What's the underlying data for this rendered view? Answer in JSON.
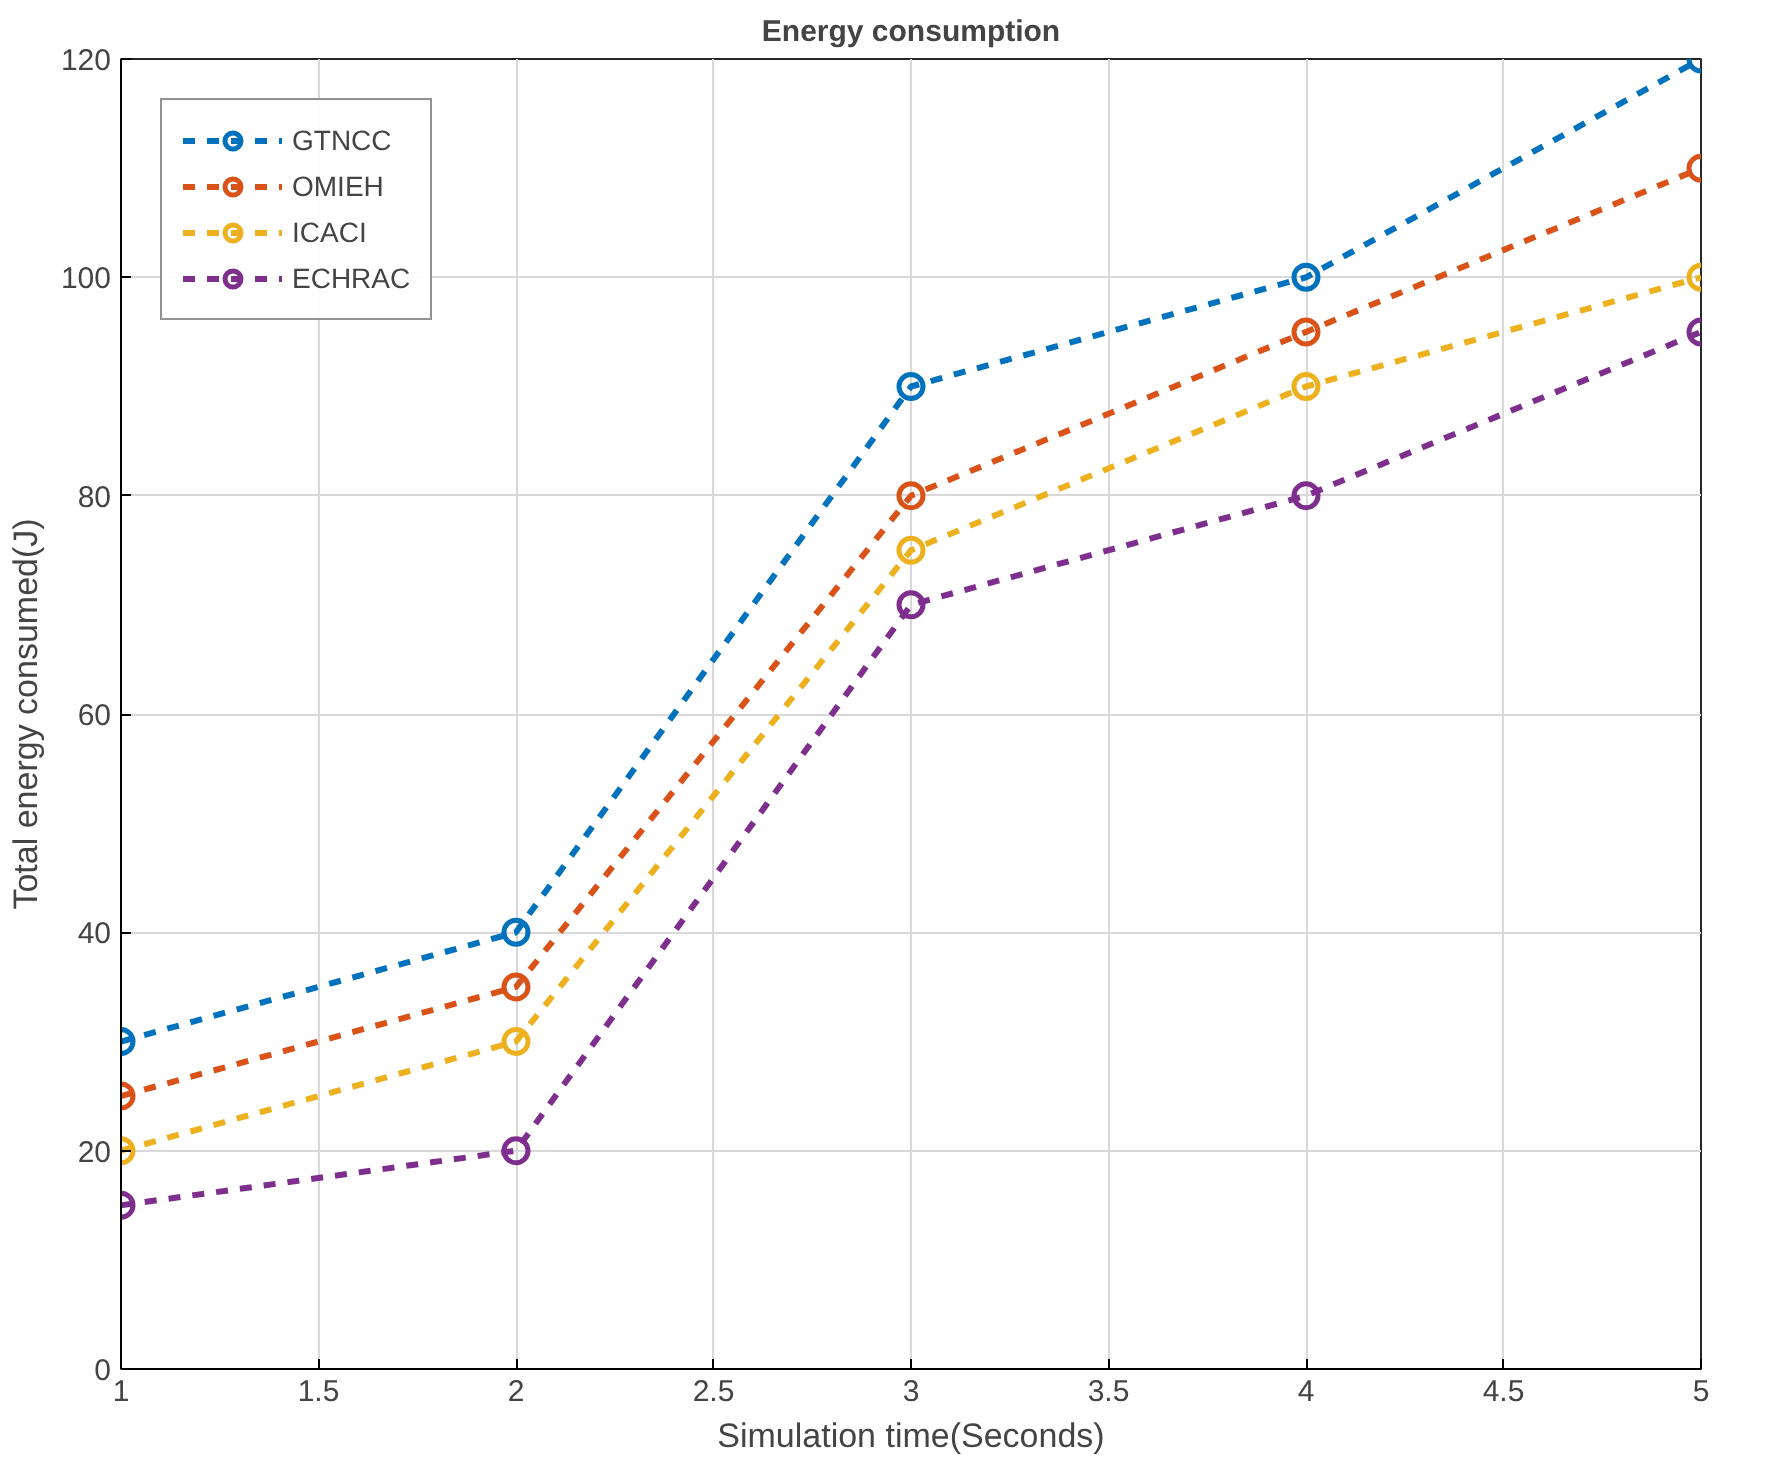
{
  "chart_data": {
    "type": "line",
    "title": "Energy consumption",
    "xlabel": "Simulation time(Seconds)",
    "ylabel": "Total energy consumed(J)",
    "x": [
      1,
      2,
      3,
      4,
      5
    ],
    "series": [
      {
        "name": "GTNCC",
        "color": "#0072bd",
        "values": [
          30,
          40,
          90,
          100,
          120
        ]
      },
      {
        "name": "OMIEH",
        "color": "#d95319",
        "values": [
          25,
          35,
          80,
          95,
          110
        ]
      },
      {
        "name": "ICACI",
        "color": "#edb120",
        "values": [
          20,
          30,
          75,
          90,
          100
        ]
      },
      {
        "name": "ECHRAC",
        "color": "#7e2f8e",
        "values": [
          15,
          20,
          70,
          80,
          95
        ]
      }
    ],
    "xlim": [
      1,
      5
    ],
    "ylim": [
      0,
      120
    ],
    "xticks": [
      1,
      1.5,
      2,
      2.5,
      3,
      3.5,
      4,
      4.5,
      5
    ],
    "yticks": [
      0,
      20,
      40,
      60,
      80,
      100,
      120
    ],
    "grid": true,
    "legend": "top left",
    "marker": "circle",
    "line_style": "dashed"
  }
}
